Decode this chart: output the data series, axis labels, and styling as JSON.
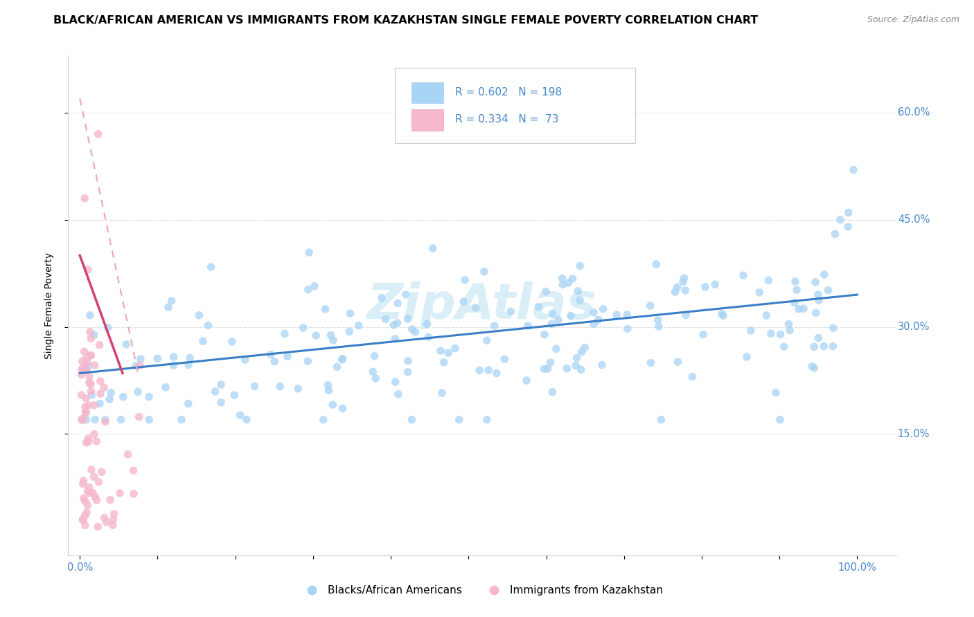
{
  "title": "BLACK/AFRICAN AMERICAN VS IMMIGRANTS FROM KAZAKHSTAN SINGLE FEMALE POVERTY CORRELATION CHART",
  "source": "Source: ZipAtlas.com",
  "ylabel": "Single Female Poverty",
  "blue_R": 0.602,
  "blue_N": 198,
  "pink_R": 0.334,
  "pink_N": 73,
  "blue_color": "#a8d4f5",
  "blue_line_color": "#3a7ec6",
  "pink_color": "#f5b8cc",
  "pink_line_color": "#d44070",
  "pink_dash_color": "#f0a0c0",
  "watermark": "ZipAtlas",
  "watermark_color": "#daeef8",
  "tick_color": "#4488cc",
  "label_color": "#4488cc",
  "grid_color": "#dddddd",
  "background_color": "#ffffff",
  "title_fontsize": 11.5,
  "axis_label_fontsize": 10,
  "tick_fontsize": 10.5,
  "legend_fontsize": 11
}
